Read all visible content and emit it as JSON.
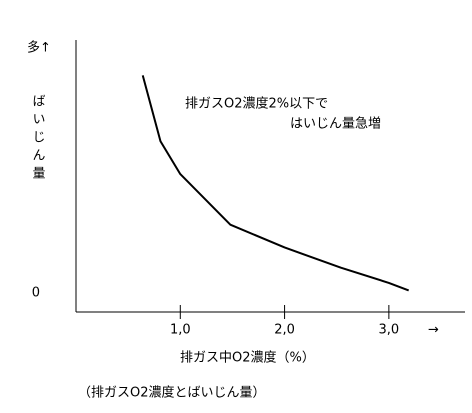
{
  "chart_data": {
    "type": "line",
    "y_label_top": "多↑",
    "y_label": "ばいじん量",
    "x_label": "排ガス中O2濃度（%）",
    "x_arrow": "→",
    "annotation": [
      "排ガスO2濃度2%以下で",
      "はいじん量急増"
    ],
    "caption": "（排ガスO2濃度とばいじん量）",
    "x": [
      0.64,
      0.81,
      1.0,
      1.48,
      2.0,
      2.54,
      3.0,
      3.19
    ],
    "series": [
      {
        "color": "#000000",
        "values": [
          86,
          60,
          47,
          27,
          18,
          10,
          4,
          1
        ]
      }
    ],
    "xlim": [
      0,
      3.73
    ],
    "ylim": [
      -7.5,
      100
    ],
    "xticks": [
      {
        "value": 1,
        "label": "1,0"
      },
      {
        "value": 2,
        "label": "2,0"
      },
      {
        "value": 3,
        "label": "3,0"
      }
    ],
    "yticks": [
      0
    ]
  }
}
